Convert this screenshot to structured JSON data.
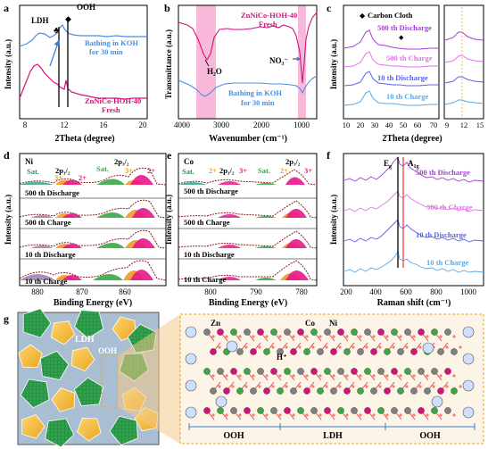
{
  "colors": {
    "fresh": "#d4127b",
    "bathing": "#4a8ee0",
    "c500d": "#a43fd6",
    "c500c": "#e276e6",
    "c10d": "#5b62e8",
    "c10c": "#5aa9e6",
    "highlight": "#f7b8d9",
    "ni_sat": "#39a845",
    "ni2": "#e9178a",
    "ni3": "#f09a1e",
    "envelope": "#8b1a1a"
  },
  "panels": {
    "a": {
      "letter": "a",
      "xlabel": "2Theta (degree)",
      "ylabel": "Intensity (a.u.)",
      "xticks": [
        "8",
        "12",
        "16",
        "20"
      ],
      "ldh_label": "LDH",
      "ooh_label": "OOH",
      "bathing_label_1": "Bathing in KOH",
      "bathing_label_2": "for 30 min",
      "fresh_label_1": "ZnNiCo-HOH-40",
      "fresh_label_2": "Fresh"
    },
    "b": {
      "letter": "b",
      "xlabel": "Wavenumber (cm⁻¹)",
      "ylabel": "Transmittance (a.u.)",
      "xticks": [
        "4000",
        "3000",
        "2000",
        "1000"
      ],
      "fresh_label_1": "ZnNiCo-HOH-40",
      "fresh_label_2": "Fresh",
      "bathing_label_1": "Bathing in KOH",
      "bathing_label_2": "for 30 min",
      "h2o": "H₂O",
      "no3": "NO₃⁻"
    },
    "c": {
      "letter": "c",
      "xlabel": "2Theta (degree)",
      "ylabel": "Intensity (a.u.)",
      "legend": "Carbon Cloth",
      "xticks_main": [
        "10",
        "20",
        "30",
        "40",
        "50",
        "60",
        "70"
      ],
      "xticks_zoom": [
        "9",
        "12",
        "15"
      ],
      "labels": [
        "500 th Discharge",
        "500 th Charge",
        "10 th Discharge",
        "10 th Charge"
      ]
    },
    "d": {
      "letter": "d",
      "element": "Ni",
      "xlabel": "Binding Energy (eV)",
      "ylabel": "Intensity (a.u.)",
      "xticks": [
        "880",
        "870",
        "860"
      ],
      "sat1": "Sat.",
      "sat2": "Sat.",
      "p12": "2p₁/₂",
      "p32": "2p₃/₂",
      "ox3a": "3+",
      "ox2a": "2+",
      "ox3b": "3+",
      "ox2b": "2+",
      "labels": [
        "500 th Discharge",
        "500 th Charge",
        "10 th Discharge",
        "10 th Charge"
      ]
    },
    "e": {
      "letter": "e",
      "element": "Co",
      "xlabel": "Binding Energy (eV)",
      "ylabel": "Intensity (a.u.)",
      "xticks": [
        "800",
        "790",
        "780"
      ],
      "sat1": "Sat.",
      "sat2": "Sat.",
      "p12": "2p₁/₂",
      "p32": "2p₃/₂",
      "ox2a": "2+",
      "ox3a": "3+",
      "ox2b": "2+",
      "ox3b": "3+",
      "labels": [
        "500 th Discharge",
        "500 th Charge",
        "10 th Discharge",
        "10 th Charge"
      ]
    },
    "f": {
      "letter": "f",
      "xlabel": "Raman shift (cm⁻¹)",
      "ylabel": "Intensity (a.u.)",
      "xticks": [
        "200",
        "400",
        "600",
        "800",
        "1000"
      ],
      "eg": "E",
      "eg_sub": "g",
      "a1g": "A",
      "a1g_sub": "1g",
      "labels": [
        "500 th Discharge",
        "500 th Charge",
        "10 th Discharge",
        "10 th Charge"
      ]
    },
    "g": {
      "letter": "g",
      "ldh": "LDH",
      "ooh": "OOH",
      "zn": "Zn",
      "co": "Co",
      "ni": "Ni",
      "hplus": "H⁺",
      "bottom_labels": [
        "OOH",
        "LDH",
        "OOH"
      ]
    }
  }
}
